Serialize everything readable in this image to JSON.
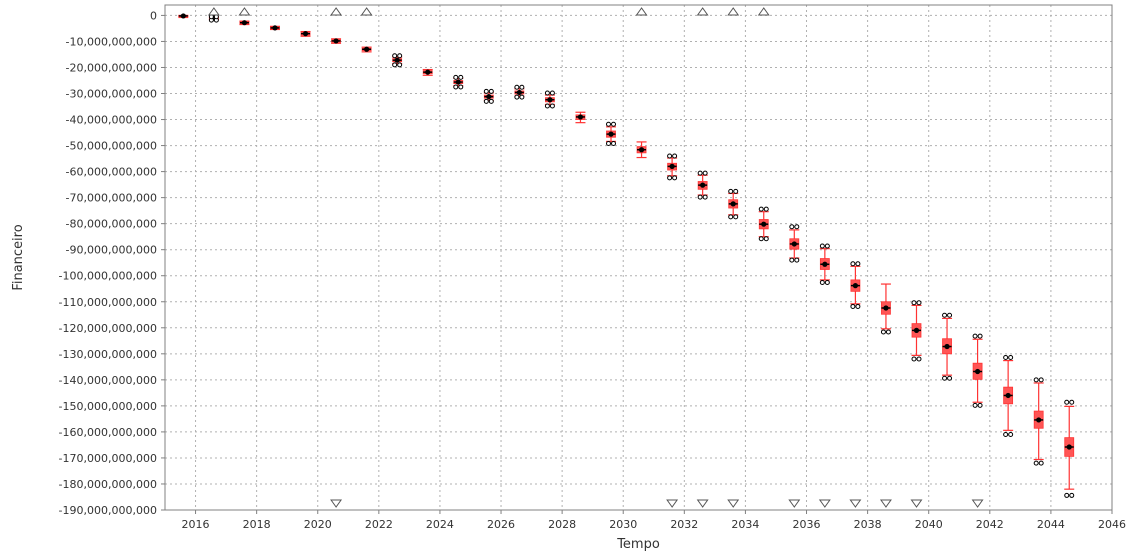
{
  "chart_data": {
    "type": "box",
    "xlabel": "Tempo",
    "ylabel": "Financeiro",
    "xlim": [
      2015,
      2046
    ],
    "ylim": [
      -190000000000,
      4000000000
    ],
    "grid": true,
    "x_ticks": [
      2016,
      2018,
      2020,
      2022,
      2024,
      2026,
      2028,
      2030,
      2032,
      2034,
      2036,
      2038,
      2040,
      2042,
      2044,
      2046
    ],
    "x_tick_labels": [
      "2016",
      "2018",
      "2020",
      "2022",
      "2024",
      "2026",
      "2028",
      "2030",
      "2032",
      "2034",
      "2036",
      "2038",
      "2040",
      "2042",
      "2044",
      "2046"
    ],
    "y_ticks": [
      0,
      -10000000000,
      -20000000000,
      -30000000000,
      -40000000000,
      -50000000000,
      -60000000000,
      -70000000000,
      -80000000000,
      -90000000000,
      -100000000000,
      -110000000000,
      -120000000000,
      -130000000000,
      -140000000000,
      -150000000000,
      -160000000000,
      -170000000000,
      -180000000000,
      -190000000000
    ],
    "y_tick_labels": [
      "0",
      "-10,000,000,000",
      "-20,000,000,000",
      "-30,000,000,000",
      "-40,000,000,000",
      "-50,000,000,000",
      "-60,000,000,000",
      "-70,000,000,000",
      "-80,000,000,000",
      "-90,000,000,000",
      "-100,000,000,000",
      "-110,000,000,000",
      "-120,000,000,000",
      "-130,000,000,000",
      "-140,000,000,000",
      "-150,000,000,000",
      "-160,000,000,000",
      "-170,000,000,000",
      "-180,000,000,000",
      "-190,000,000,000"
    ],
    "box_color": "#ff5555",
    "whisker_color": "#ff3333",
    "marker_color": "#000000",
    "series": [
      {
        "x": 2015.6,
        "q1": -300000000,
        "median": -200000000,
        "q3": -100000000,
        "whisker_low": -400000000,
        "whisker_high": 0,
        "outliers": []
      },
      {
        "x": 2016.6,
        "q1": -1300000000,
        "median": -1000000000,
        "q3": -800000000,
        "whisker_low": -1500000000,
        "whisker_high": -600000000,
        "outliers": [
          -1800000000,
          -500000000
        ]
      },
      {
        "x": 2017.6,
        "q1": -3200000000,
        "median": -2800000000,
        "q3": -2400000000,
        "whisker_low": -3500000000,
        "whisker_high": -2200000000,
        "outliers": []
      },
      {
        "x": 2018.6,
        "q1": -5200000000,
        "median": -4800000000,
        "q3": -4400000000,
        "whisker_low": -5400000000,
        "whisker_high": -4200000000,
        "outliers": []
      },
      {
        "x": 2019.6,
        "q1": -7600000000,
        "median": -7000000000,
        "q3": -6600000000,
        "whisker_low": -8000000000,
        "whisker_high": -6200000000,
        "outliers": []
      },
      {
        "x": 2020.6,
        "q1": -10300000000,
        "median": -9800000000,
        "q3": -9400000000,
        "whisker_low": -10700000000,
        "whisker_high": -9000000000,
        "outliers": []
      },
      {
        "x": 2021.6,
        "q1": -13500000000,
        "median": -13000000000,
        "q3": -12600000000,
        "whisker_low": -14000000000,
        "whisker_high": -12200000000,
        "outliers": []
      },
      {
        "x": 2022.6,
        "q1": -17800000000,
        "median": -17200000000,
        "q3": -16600000000,
        "whisker_low": -18500000000,
        "whisker_high": -16000000000,
        "outliers": [
          -19000000000,
          -15500000000
        ]
      },
      {
        "x": 2023.6,
        "q1": -22400000000,
        "median": -21800000000,
        "q3": -21200000000,
        "whisker_low": -23000000000,
        "whisker_high": -20800000000,
        "outliers": []
      },
      {
        "x": 2024.6,
        "q1": -26200000000,
        "median": -25600000000,
        "q3": -25000000000,
        "whisker_low": -27000000000,
        "whisker_high": -24200000000,
        "outliers": [
          -27500000000,
          -23800000000
        ]
      },
      {
        "x": 2025.6,
        "q1": -31800000000,
        "median": -31200000000,
        "q3": -30600000000,
        "whisker_low": -32600000000,
        "whisker_high": -29800000000,
        "outliers": [
          -33000000000,
          -29200000000
        ]
      },
      {
        "x": 2026.6,
        "q1": -30200000000,
        "median": -29600000000,
        "q3": -29000000000,
        "whisker_low": -31000000000,
        "whisker_high": -28200000000,
        "outliers": [
          -31400000000,
          -27600000000
        ]
      },
      {
        "x": 2027.6,
        "q1": -33200000000,
        "median": -32400000000,
        "q3": -31600000000,
        "whisker_low": -34200000000,
        "whisker_high": -30600000000,
        "outliers": [
          -34800000000,
          -29800000000
        ]
      },
      {
        "x": 2028.6,
        "q1": -40000000000,
        "median": -39000000000,
        "q3": -38200000000,
        "whisker_low": -41200000000,
        "whisker_high": -37200000000,
        "outliers": []
      },
      {
        "x": 2029.6,
        "q1": -46800000000,
        "median": -45600000000,
        "q3": -44400000000,
        "whisker_low": -48400000000,
        "whisker_high": -42800000000,
        "outliers": [
          -49200000000,
          -41800000000
        ]
      },
      {
        "x": 2030.6,
        "q1": -52800000000,
        "median": -51600000000,
        "q3": -50400000000,
        "whisker_low": -54600000000,
        "whisker_high": -48600000000,
        "outliers": []
      },
      {
        "x": 2031.6,
        "q1": -59400000000,
        "median": -58000000000,
        "q3": -56800000000,
        "whisker_low": -61600000000,
        "whisker_high": -54800000000,
        "outliers": [
          -62400000000,
          -54000000000
        ]
      },
      {
        "x": 2032.6,
        "q1": -66800000000,
        "median": -65200000000,
        "q3": -63800000000,
        "whisker_low": -69000000000,
        "whisker_high": -61400000000,
        "outliers": [
          -69800000000,
          -60600000000
        ]
      },
      {
        "x": 2033.6,
        "q1": -74000000000,
        "median": -72400000000,
        "q3": -70800000000,
        "whisker_low": -76600000000,
        "whisker_high": -68400000000,
        "outliers": [
          -77400000000,
          -67600000000
        ]
      },
      {
        "x": 2034.6,
        "q1": -82000000000,
        "median": -80200000000,
        "q3": -78400000000,
        "whisker_low": -85000000000,
        "whisker_high": -75400000000,
        "outliers": [
          -85800000000,
          -74400000000
        ]
      },
      {
        "x": 2035.6,
        "q1": -89800000000,
        "median": -87800000000,
        "q3": -85800000000,
        "whisker_low": -93200000000,
        "whisker_high": -82400000000,
        "outliers": [
          -94000000000,
          -81200000000
        ]
      },
      {
        "x": 2036.6,
        "q1": -97600000000,
        "median": -95600000000,
        "q3": -93400000000,
        "whisker_low": -101600000000,
        "whisker_high": -89600000000,
        "outliers": [
          -102600000000,
          -88600000000
        ]
      },
      {
        "x": 2037.6,
        "q1": -106000000000,
        "median": -103800000000,
        "q3": -101600000000,
        "whisker_low": -110800000000,
        "whisker_high": -96400000000,
        "outliers": [
          -111800000000,
          -95400000000
        ]
      },
      {
        "x": 2038.6,
        "q1": -114800000000,
        "median": -112400000000,
        "q3": -110000000000,
        "whisker_low": -120400000000,
        "whisker_high": -103200000000,
        "outliers": [
          -121600000000
        ]
      },
      {
        "x": 2039.6,
        "q1": -123600000000,
        "median": -121000000000,
        "q3": -118400000000,
        "whisker_low": -130600000000,
        "whisker_high": -111400000000,
        "outliers": [
          -132000000000,
          -110400000000
        ]
      },
      {
        "x": 2040.6,
        "q1": -130000000000,
        "median": -127200000000,
        "q3": -124200000000,
        "whisker_low": -138200000000,
        "whisker_high": -116400000000,
        "outliers": [
          -139400000000,
          -115200000000
        ]
      },
      {
        "x": 2041.6,
        "q1": -139800000000,
        "median": -136800000000,
        "q3": -133600000000,
        "whisker_low": -148600000000,
        "whisker_high": -124400000000,
        "outliers": [
          -149800000000,
          -123200000000
        ]
      },
      {
        "x": 2042.6,
        "q1": -149200000000,
        "median": -146000000000,
        "q3": -142800000000,
        "whisker_low": -159400000000,
        "whisker_high": -132600000000,
        "outliers": [
          -161000000000,
          -131400000000
        ]
      },
      {
        "x": 2043.6,
        "q1": -158600000000,
        "median": -155400000000,
        "q3": -152000000000,
        "whisker_low": -170600000000,
        "whisker_high": -141200000000,
        "outliers": [
          -172000000000,
          -140000000000
        ]
      },
      {
        "x": 2044.6,
        "q1": -169400000000,
        "median": -165800000000,
        "q3": -162200000000,
        "whisker_low": -182000000000,
        "whisker_high": -150200000000,
        "outliers": [
          -184400000000,
          -148600000000
        ]
      }
    ],
    "offscale_markers_top": [
      2016.6,
      2017.6,
      2020.6,
      2021.6,
      2030.6,
      2032.6,
      2033.6,
      2034.6
    ],
    "offscale_markers_bottom": [
      2020.6,
      2031.6,
      2032.6,
      2033.6,
      2035.6,
      2036.6,
      2037.6,
      2038.6,
      2039.6,
      2041.6
    ]
  }
}
